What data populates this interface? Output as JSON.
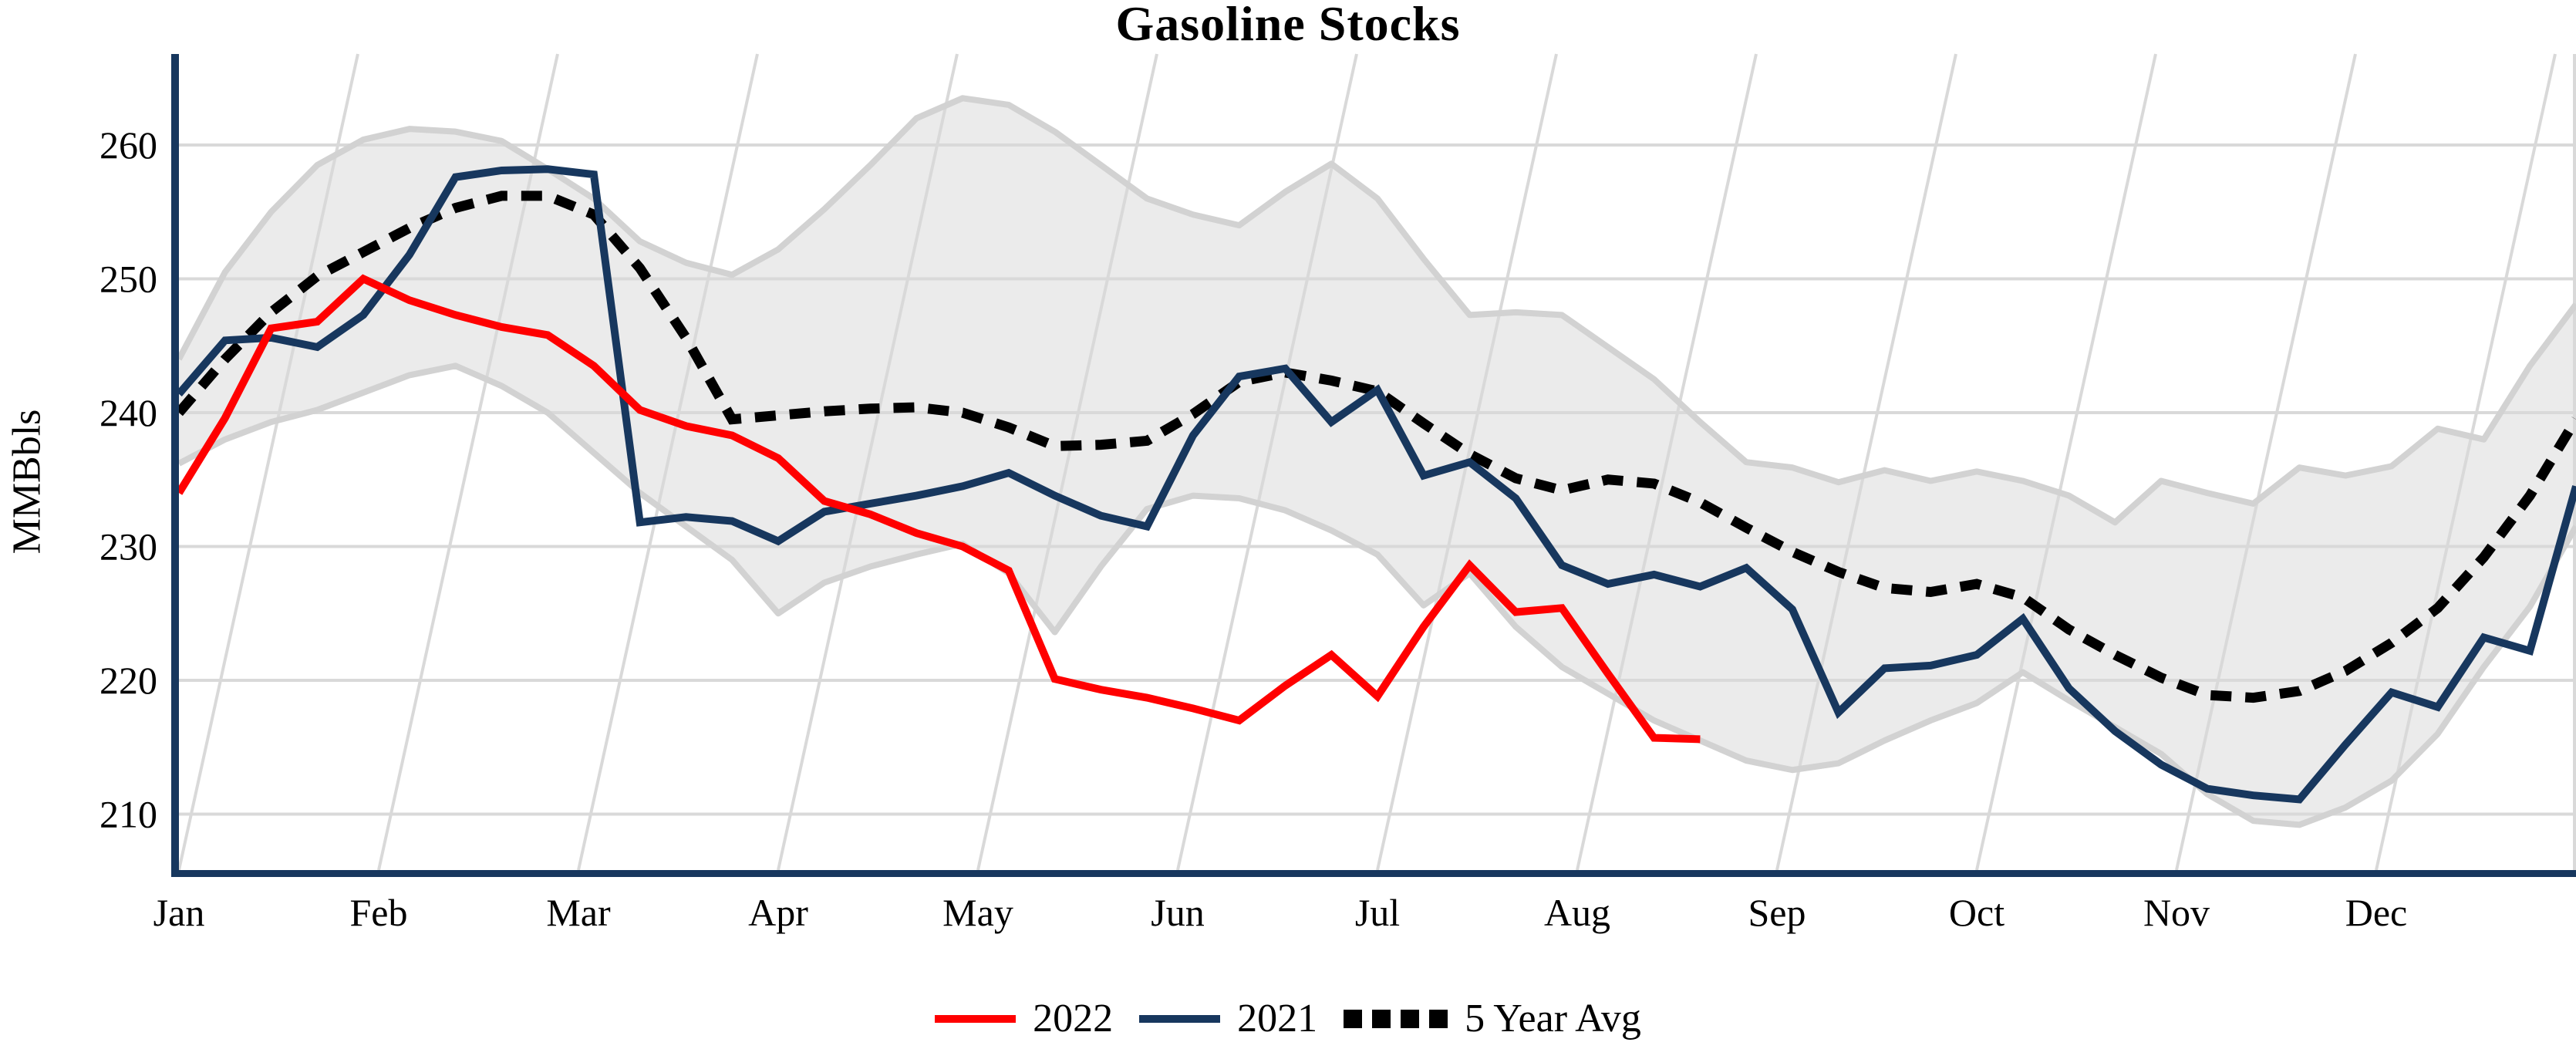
{
  "title": "Gasoline Stocks",
  "y_axis_label": "MMBbls",
  "legend": [
    {
      "label": "2022",
      "color": "#FF0000",
      "style": "solid"
    },
    {
      "label": "2021",
      "color": "#17375E",
      "style": "solid"
    },
    {
      "label": "5 Year Avg",
      "color": "#000000",
      "style": "dotted"
    }
  ],
  "colors": {
    "red_2022": "#FF0000",
    "navy_2021": "#17375E",
    "five_year_avg": "#000000",
    "band_fill": "#EBEBEB",
    "band_edge": "#D2D2D2",
    "gridline": "#D9D9D9",
    "axis_spine": "#17375E",
    "text": "#000000"
  },
  "chart_data": {
    "type": "line",
    "title": "Gasoline Stocks",
    "ylabel": "MMBbls",
    "xlabel": "",
    "x_unit": "week (53 weekly points Jan-Dec)",
    "x_tick_labels": [
      "Jan",
      "Feb",
      "Mar",
      "Apr",
      "May",
      "Jun",
      "Jul",
      "Aug",
      "Sep",
      "Oct",
      "Nov",
      "Dec"
    ],
    "y_ticks": [
      210,
      220,
      230,
      240,
      250,
      260
    ],
    "ylim": [
      205.8,
      266.7
    ],
    "grid": true,
    "legend_position": "bottom-center",
    "band": {
      "name": "5 Year Range",
      "fill": "#EBEBEB",
      "edge": "#D2D2D2",
      "upper": [
        244.0,
        250.5,
        255.0,
        258.5,
        260.4,
        261.2,
        261.0,
        260.3,
        258.2,
        256.0,
        252.8,
        251.2,
        250.3,
        252.2,
        255.2,
        258.5,
        262.0,
        263.5,
        263.0,
        261.0,
        258.5,
        256.0,
        254.8,
        254.0,
        256.5,
        258.6,
        256.0,
        251.5,
        247.3,
        247.5,
        247.3,
        244.9,
        242.5,
        239.3,
        236.3,
        235.9,
        234.8,
        235.7,
        234.9,
        235.6,
        234.9,
        233.8,
        231.8,
        234.9,
        234.0,
        233.2,
        235.9,
        235.3,
        236.0,
        238.8,
        238.0,
        243.5,
        248.1
      ],
      "lower": [
        236.2,
        238.0,
        239.3,
        240.2,
        241.5,
        242.8,
        243.5,
        242.0,
        240.0,
        237.0,
        234.0,
        231.5,
        229.0,
        225.0,
        227.3,
        228.5,
        229.4,
        230.2,
        228.0,
        223.6,
        228.5,
        232.8,
        233.8,
        233.6,
        232.7,
        231.2,
        229.4,
        225.6,
        228.0,
        224.0,
        221.0,
        219.0,
        217.0,
        215.5,
        214.0,
        213.3,
        213.8,
        215.5,
        217.0,
        218.3,
        220.6,
        218.5,
        216.5,
        214.5,
        211.5,
        209.5,
        209.2,
        210.5,
        212.5,
        216.0,
        221.0,
        225.5,
        231.5
      ]
    },
    "series": [
      {
        "name": "5 Year Avg",
        "color": "#000000",
        "style": "dotted",
        "width": 13,
        "values": [
          240.0,
          244.0,
          247.5,
          250.2,
          252.0,
          253.8,
          255.3,
          256.2,
          256.2,
          254.8,
          250.8,
          245.6,
          239.5,
          239.8,
          240.1,
          240.3,
          240.4,
          240.0,
          238.9,
          237.5,
          237.6,
          237.9,
          239.9,
          242.3,
          243.0,
          242.4,
          241.6,
          239.2,
          236.9,
          235.1,
          234.2,
          235.0,
          234.7,
          233.3,
          231.4,
          229.6,
          228.1,
          226.9,
          226.6,
          227.2,
          226.2,
          223.8,
          221.9,
          220.2,
          218.9,
          218.7,
          219.2,
          220.7,
          222.8,
          225.4,
          229.2,
          233.8,
          239.5
        ]
      },
      {
        "name": "2021",
        "color": "#17375E",
        "style": "solid",
        "width": 10,
        "values": [
          241.4,
          245.4,
          245.6,
          244.9,
          247.3,
          251.8,
          257.6,
          258.1,
          258.2,
          257.8,
          231.8,
          232.2,
          231.9,
          230.4,
          232.6,
          233.2,
          233.8,
          234.5,
          235.5,
          233.8,
          232.3,
          231.5,
          238.3,
          242.7,
          243.3,
          239.3,
          241.7,
          235.3,
          236.3,
          233.6,
          228.6,
          227.2,
          227.9,
          227.0,
          228.4,
          225.3,
          217.6,
          220.9,
          221.1,
          221.9,
          224.6,
          219.4,
          216.2,
          213.7,
          211.9,
          211.4,
          211.1,
          215.2,
          219.1,
          218.0,
          223.2,
          222.2,
          234.5
        ]
      },
      {
        "name": "2022",
        "color": "#FF0000",
        "style": "solid",
        "width": 10,
        "values": [
          234.0,
          239.6,
          246.3,
          246.8,
          250.0,
          248.4,
          247.3,
          246.4,
          245.8,
          243.5,
          240.2,
          239.0,
          238.3,
          236.6,
          233.4,
          232.4,
          231.0,
          230.0,
          228.2,
          220.1,
          219.3,
          218.7,
          217.9,
          217.0,
          219.6,
          221.9,
          218.8,
          224.0,
          228.6,
          225.1,
          225.4,
          220.5,
          215.7,
          215.6
        ]
      }
    ]
  }
}
